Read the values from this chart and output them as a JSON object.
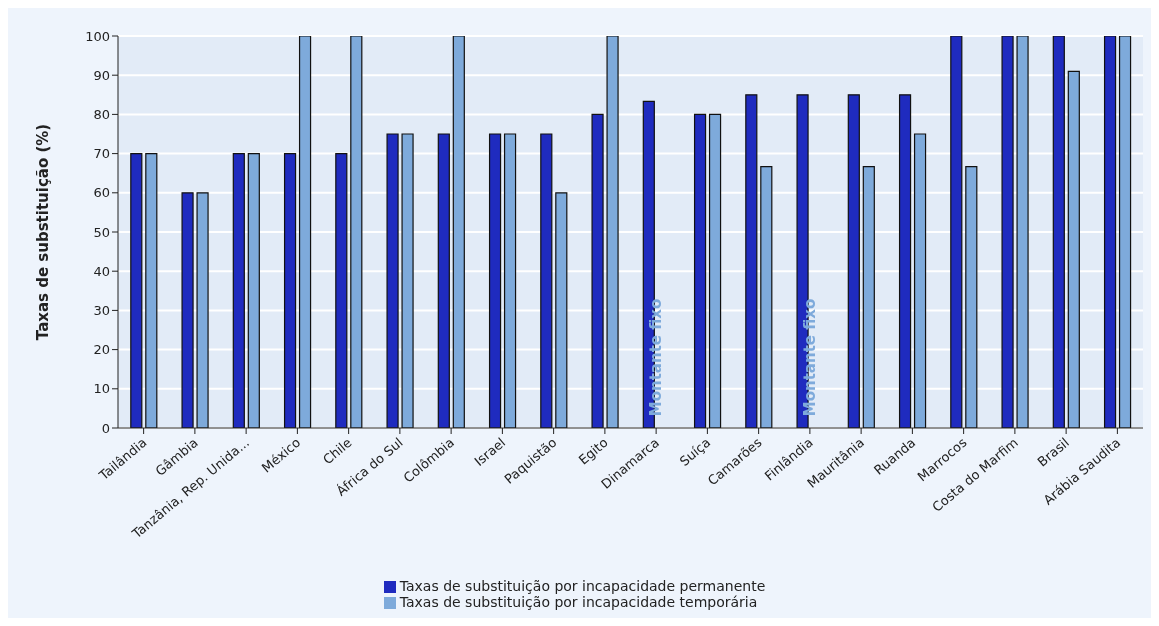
{
  "chart_data": {
    "type": "bar",
    "ylabel": "Taxas de substituição (%)",
    "categories": [
      "Tailândia",
      "Gâmbia",
      "Tanzânia, Rep. Unida...",
      "México",
      "Chile",
      "África do Sul",
      "Colômbia",
      "Israel",
      "Paquistão",
      "Egito",
      "Dinamarca",
      "Suíça",
      "Camarões",
      "Finlândia",
      "Mauritânia",
      "Ruanda",
      "Marrocos",
      "Costa do Marfim",
      "Brasil",
      "Arábia Saudita"
    ],
    "series": [
      {
        "name": "Taxas de substituição por incapacidade permanente",
        "color": "#1f2bbf",
        "values": [
          70,
          60,
          70,
          70,
          70,
          75,
          75,
          75,
          75,
          80,
          83.3,
          80,
          85,
          85,
          85,
          85,
          100,
          100,
          100,
          100
        ]
      },
      {
        "name": "Taxas de substituição por incapacidade temporária",
        "color": "#7eaadb",
        "values": [
          70,
          60,
          70,
          100,
          100,
          75,
          100,
          75,
          60,
          100,
          null,
          80,
          66.7,
          null,
          66.7,
          75,
          66.7,
          100,
          91,
          100
        ]
      }
    ],
    "ylim": [
      0,
      100
    ],
    "yticks": [
      0,
      10,
      20,
      30,
      40,
      50,
      60,
      70,
      80,
      90,
      100
    ],
    "grid": "y",
    "legend": "bottom",
    "annotations": [
      {
        "text": "Montante fixo",
        "x": "Dinamarca",
        "y": 18
      },
      {
        "text": "Montante fixo",
        "x": "Finlândia",
        "y": 18
      }
    ]
  }
}
